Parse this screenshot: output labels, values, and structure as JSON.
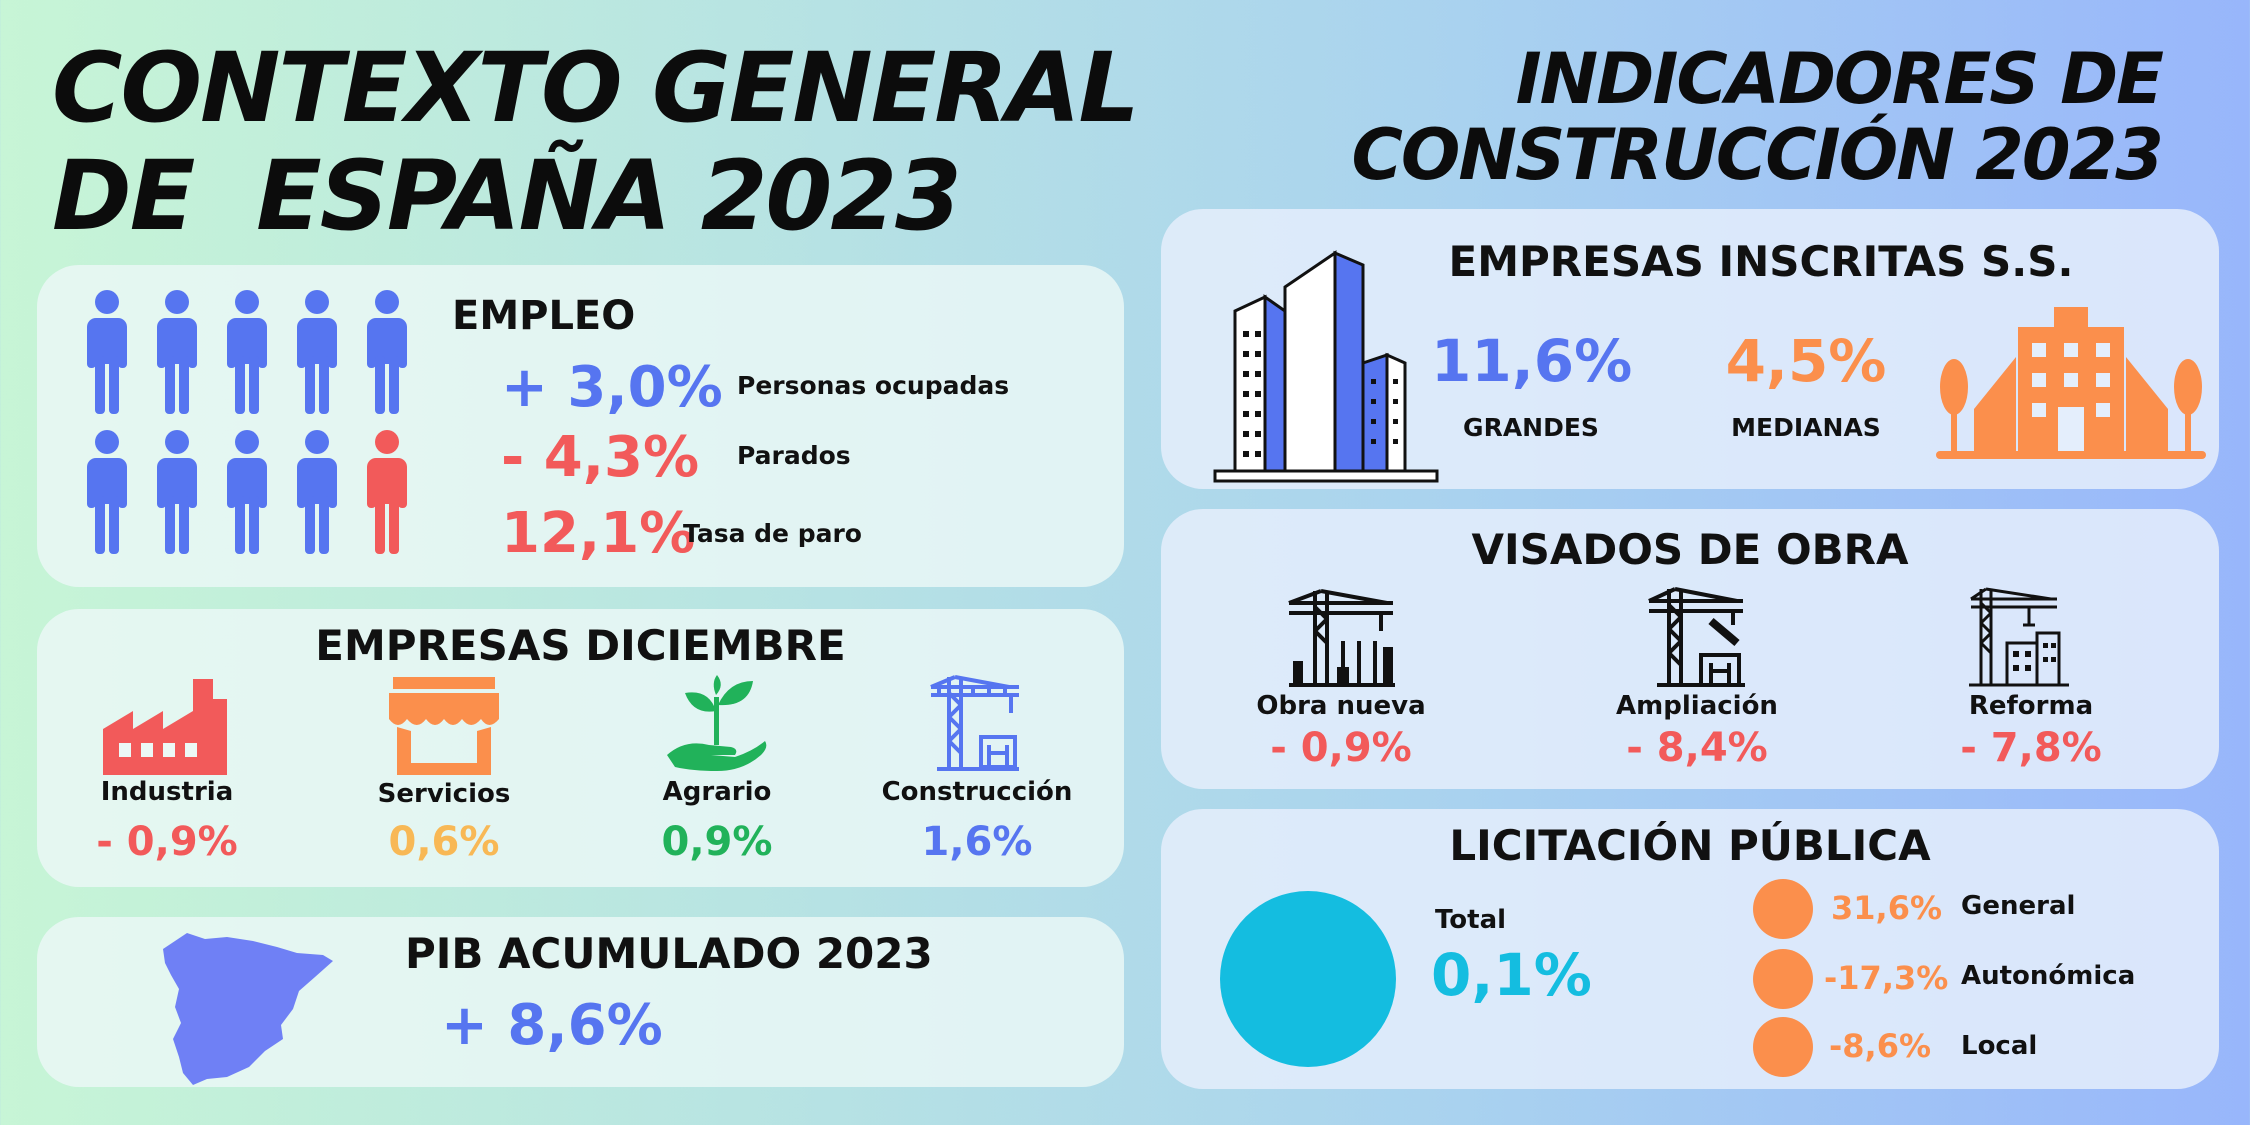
{
  "titles": {
    "left_line1": "CONTEXTO GENERAL",
    "left_line2": "DE  ESPAÑA 2023",
    "right_line1": "INDICADORES DE",
    "right_line2": "CONSTRUCCIÓN 2023"
  },
  "colors": {
    "blue": "#5675f0",
    "red": "#f25a5a",
    "orange": "#fb8f4c",
    "yellow": "#f8b855",
    "green": "#21b25a",
    "cyan": "#14bde0"
  },
  "empleo": {
    "heading": "EMPLEO",
    "rows": [
      {
        "value": "+ 3,0%",
        "label": "Personas ocupadas"
      },
      {
        "value": "- 4,3%",
        "label": "Parados"
      },
      {
        "value": "12,1%",
        "label": "Tasa de paro"
      }
    ]
  },
  "empresas_diciembre": {
    "heading": "EMPRESAS DICIEMBRE",
    "items": [
      {
        "icon": "factory-icon",
        "label": "Industria",
        "value": "- 0,9%"
      },
      {
        "icon": "shop-icon",
        "label": "Servicios",
        "value": "0,6%"
      },
      {
        "icon": "plant-hand-icon",
        "label": "Agrario",
        "value": "0,9%"
      },
      {
        "icon": "crane-icon",
        "label": "Construcción",
        "value": "1,6%"
      }
    ]
  },
  "pib": {
    "heading": "PIB ACUMULADO 2023",
    "value": "+ 8,6%"
  },
  "empresas_inscritas": {
    "heading": "EMPRESAS INSCRITAS S.S.",
    "grandes": {
      "value": "11,6%",
      "label": "GRANDES"
    },
    "medianas": {
      "value": "4,5%",
      "label": "MEDIANAS"
    }
  },
  "visados": {
    "heading": "VISADOS DE OBRA",
    "items": [
      {
        "icon": "new-build-crane-icon",
        "label": "Obra nueva",
        "value": "- 0,9%"
      },
      {
        "icon": "extension-crane-icon",
        "label": "Ampliación",
        "value": "- 8,4%"
      },
      {
        "icon": "renovation-crane-icon",
        "label": "Reforma",
        "value": "- 7,8%"
      }
    ]
  },
  "licitacion": {
    "heading": "LICITACIÓN PÚBLICA",
    "total_label": "Total",
    "total_value": "0,1%",
    "items": [
      {
        "value": "31,6%",
        "label": "General"
      },
      {
        "value": "-17,3%",
        "label": "Autonómica"
      },
      {
        "value": "-8,6%",
        "label": "Local"
      }
    ]
  }
}
